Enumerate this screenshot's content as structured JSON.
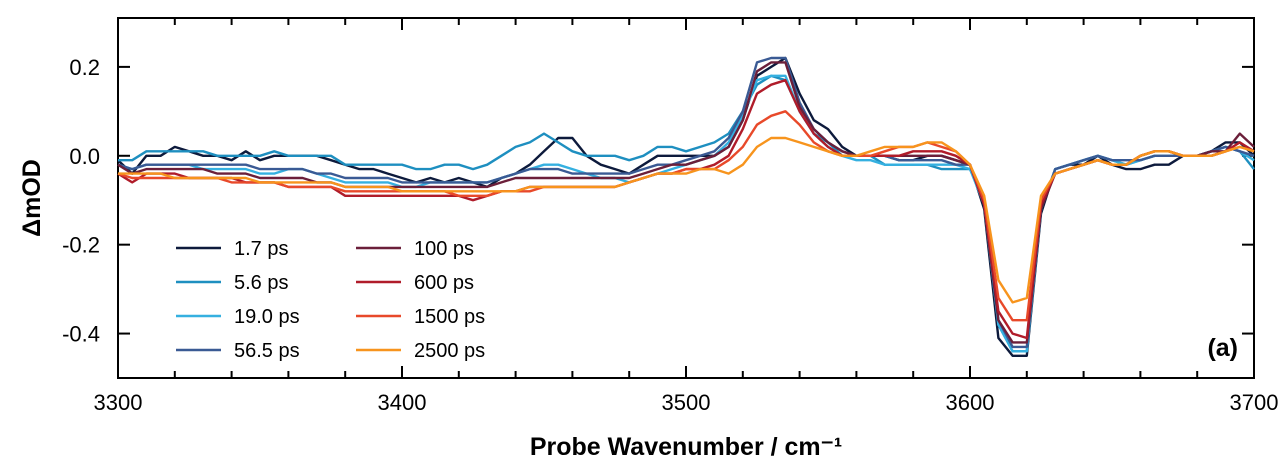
{
  "chart_data": {
    "type": "line",
    "xlabel": "Probe Wavenumber / cm⁻¹",
    "ylabel": "ΔmOD",
    "panel_label": "(a)",
    "xlim": [
      3300,
      3700
    ],
    "ylim": [
      -0.5,
      0.31
    ],
    "x_ticks": [
      3300,
      3400,
      3500,
      3600,
      3700
    ],
    "x_minor_step": 20,
    "y_ticks": [
      0.2,
      0.0,
      -0.2,
      -0.4
    ],
    "y_tick_labels": [
      "0.2",
      "0.0",
      "-0.2",
      "-0.4"
    ],
    "legend_position": "lower-left",
    "x": [
      3300,
      3305,
      3310,
      3315,
      3320,
      3325,
      3330,
      3335,
      3340,
      3345,
      3350,
      3355,
      3360,
      3365,
      3370,
      3375,
      3380,
      3385,
      3390,
      3395,
      3400,
      3405,
      3410,
      3415,
      3420,
      3425,
      3430,
      3435,
      3440,
      3445,
      3450,
      3455,
      3460,
      3465,
      3470,
      3475,
      3480,
      3485,
      3490,
      3495,
      3500,
      3505,
      3510,
      3515,
      3520,
      3525,
      3530,
      3535,
      3540,
      3545,
      3550,
      3555,
      3560,
      3565,
      3570,
      3575,
      3580,
      3585,
      3590,
      3595,
      3600,
      3605,
      3610,
      3615,
      3620,
      3625,
      3630,
      3635,
      3640,
      3645,
      3650,
      3655,
      3660,
      3665,
      3670,
      3675,
      3680,
      3685,
      3690,
      3695,
      3700
    ],
    "series": [
      {
        "name": "1.7 ps",
        "color": "#0d1a3c",
        "values": [
          -0.01,
          -0.04,
          0.0,
          0.0,
          0.02,
          0.01,
          0.0,
          0.0,
          -0.01,
          0.01,
          -0.01,
          0.0,
          0.0,
          0.0,
          0.0,
          -0.01,
          -0.02,
          -0.03,
          -0.03,
          -0.04,
          -0.05,
          -0.06,
          -0.05,
          -0.06,
          -0.05,
          -0.06,
          -0.07,
          -0.05,
          -0.04,
          -0.02,
          0.01,
          0.04,
          0.04,
          0.0,
          -0.02,
          -0.03,
          -0.04,
          -0.02,
          0.0,
          0.0,
          0.0,
          0.0,
          0.0,
          0.02,
          0.08,
          0.18,
          0.2,
          0.22,
          0.14,
          0.08,
          0.06,
          0.02,
          0.0,
          0.0,
          0.0,
          -0.01,
          -0.01,
          0.0,
          0.0,
          -0.01,
          -0.02,
          -0.12,
          -0.41,
          -0.45,
          -0.45,
          -0.13,
          -0.03,
          -0.02,
          -0.02,
          0.0,
          -0.02,
          -0.03,
          -0.03,
          -0.02,
          -0.02,
          0.0,
          0.0,
          0.01,
          0.03,
          0.03,
          0.0
        ]
      },
      {
        "name": "5.6 ps",
        "color": "#1e8fc0",
        "values": [
          -0.01,
          -0.01,
          0.01,
          0.01,
          0.01,
          0.01,
          0.01,
          0.0,
          0.0,
          0.0,
          0.0,
          0.01,
          0.0,
          0.0,
          0.0,
          0.0,
          -0.02,
          -0.02,
          -0.02,
          -0.02,
          -0.02,
          -0.03,
          -0.03,
          -0.02,
          -0.02,
          -0.03,
          -0.02,
          0.0,
          0.02,
          0.03,
          0.05,
          0.03,
          0.01,
          0.0,
          0.0,
          0.0,
          -0.01,
          0.0,
          0.02,
          0.02,
          0.01,
          0.02,
          0.03,
          0.05,
          0.1,
          0.16,
          0.18,
          0.17,
          0.1,
          0.05,
          0.03,
          0.0,
          0.0,
          0.0,
          -0.02,
          -0.02,
          -0.02,
          -0.02,
          -0.03,
          -0.03,
          -0.03,
          -0.1,
          -0.38,
          -0.44,
          -0.44,
          -0.12,
          -0.03,
          -0.02,
          -0.01,
          0.0,
          -0.01,
          -0.02,
          -0.01,
          0.0,
          0.0,
          0.0,
          0.0,
          0.01,
          0.02,
          0.01,
          -0.03
        ]
      },
      {
        "name": "19.0 ps",
        "color": "#35b0e0",
        "values": [
          -0.02,
          -0.03,
          -0.02,
          -0.02,
          -0.02,
          -0.02,
          -0.03,
          -0.03,
          -0.03,
          -0.03,
          -0.04,
          -0.04,
          -0.03,
          -0.03,
          -0.04,
          -0.05,
          -0.06,
          -0.06,
          -0.06,
          -0.06,
          -0.07,
          -0.07,
          -0.06,
          -0.06,
          -0.06,
          -0.06,
          -0.06,
          -0.05,
          -0.04,
          -0.03,
          -0.02,
          -0.02,
          -0.03,
          -0.04,
          -0.05,
          -0.05,
          -0.06,
          -0.05,
          -0.04,
          -0.03,
          -0.02,
          -0.01,
          0.0,
          0.03,
          0.09,
          0.17,
          0.18,
          0.18,
          0.1,
          0.05,
          0.02,
          0.0,
          -0.01,
          -0.01,
          -0.02,
          -0.02,
          -0.02,
          -0.02,
          -0.02,
          -0.02,
          -0.03,
          -0.11,
          -0.38,
          -0.44,
          -0.44,
          -0.12,
          -0.03,
          -0.02,
          -0.01,
          0.0,
          -0.01,
          -0.02,
          -0.01,
          0.0,
          0.0,
          0.0,
          0.0,
          0.01,
          0.02,
          0.01,
          -0.01
        ]
      },
      {
        "name": "56.5 ps",
        "color": "#3a5a94",
        "values": [
          -0.02,
          -0.03,
          -0.02,
          -0.02,
          -0.02,
          -0.02,
          -0.02,
          -0.02,
          -0.02,
          -0.02,
          -0.03,
          -0.03,
          -0.03,
          -0.03,
          -0.04,
          -0.04,
          -0.05,
          -0.05,
          -0.05,
          -0.05,
          -0.06,
          -0.06,
          -0.06,
          -0.06,
          -0.06,
          -0.06,
          -0.06,
          -0.05,
          -0.04,
          -0.03,
          -0.03,
          -0.03,
          -0.04,
          -0.04,
          -0.04,
          -0.04,
          -0.04,
          -0.03,
          -0.02,
          -0.02,
          -0.01,
          0.0,
          0.01,
          0.04,
          0.1,
          0.21,
          0.22,
          0.22,
          0.12,
          0.06,
          0.03,
          0.01,
          0.0,
          0.0,
          0.0,
          -0.01,
          -0.01,
          -0.01,
          -0.01,
          -0.02,
          -0.02,
          -0.11,
          -0.37,
          -0.43,
          -0.43,
          -0.12,
          -0.03,
          -0.02,
          -0.01,
          0.0,
          -0.01,
          -0.01,
          -0.01,
          0.0,
          0.0,
          0.0,
          0.0,
          0.01,
          0.02,
          0.01,
          0.0
        ]
      },
      {
        "name": "100 ps",
        "color": "#6b1f3a",
        "values": [
          -0.02,
          -0.04,
          -0.03,
          -0.03,
          -0.03,
          -0.03,
          -0.03,
          -0.04,
          -0.04,
          -0.04,
          -0.05,
          -0.05,
          -0.05,
          -0.05,
          -0.06,
          -0.06,
          -0.07,
          -0.07,
          -0.07,
          -0.07,
          -0.07,
          -0.07,
          -0.07,
          -0.07,
          -0.07,
          -0.07,
          -0.07,
          -0.06,
          -0.05,
          -0.05,
          -0.05,
          -0.05,
          -0.05,
          -0.05,
          -0.05,
          -0.05,
          -0.05,
          -0.04,
          -0.03,
          -0.02,
          -0.02,
          -0.01,
          0.0,
          0.02,
          0.08,
          0.19,
          0.21,
          0.21,
          0.11,
          0.06,
          0.03,
          0.01,
          0.0,
          0.0,
          0.0,
          0.0,
          0.0,
          0.0,
          0.0,
          -0.01,
          -0.02,
          -0.11,
          -0.37,
          -0.42,
          -0.42,
          -0.12,
          -0.04,
          -0.03,
          -0.02,
          -0.01,
          -0.02,
          -0.02,
          0.0,
          0.01,
          0.01,
          0.0,
          0.0,
          0.01,
          0.01,
          0.05,
          0.02
        ]
      },
      {
        "name": "600 ps",
        "color": "#b01c2a",
        "values": [
          -0.04,
          -0.06,
          -0.04,
          -0.04,
          -0.04,
          -0.05,
          -0.05,
          -0.05,
          -0.05,
          -0.06,
          -0.06,
          -0.06,
          -0.07,
          -0.07,
          -0.07,
          -0.07,
          -0.09,
          -0.09,
          -0.09,
          -0.09,
          -0.09,
          -0.09,
          -0.09,
          -0.09,
          -0.09,
          -0.1,
          -0.09,
          -0.08,
          -0.08,
          -0.07,
          -0.07,
          -0.07,
          -0.07,
          -0.07,
          -0.07,
          -0.07,
          -0.06,
          -0.05,
          -0.04,
          -0.04,
          -0.03,
          -0.03,
          -0.02,
          0.0,
          0.06,
          0.14,
          0.16,
          0.17,
          0.1,
          0.05,
          0.02,
          0.0,
          0.0,
          0.0,
          0.0,
          0.0,
          0.01,
          0.01,
          0.01,
          0.0,
          -0.02,
          -0.11,
          -0.35,
          -0.4,
          -0.41,
          -0.11,
          -0.04,
          -0.03,
          -0.02,
          -0.01,
          -0.02,
          -0.02,
          0.0,
          0.01,
          0.01,
          0.0,
          0.0,
          0.0,
          0.01,
          0.03,
          0.01
        ]
      },
      {
        "name": "1500 ps",
        "color": "#e8492a",
        "values": [
          -0.04,
          -0.05,
          -0.05,
          -0.05,
          -0.05,
          -0.05,
          -0.05,
          -0.05,
          -0.06,
          -0.06,
          -0.06,
          -0.06,
          -0.07,
          -0.07,
          -0.07,
          -0.07,
          -0.08,
          -0.08,
          -0.08,
          -0.08,
          -0.08,
          -0.08,
          -0.08,
          -0.08,
          -0.09,
          -0.09,
          -0.09,
          -0.08,
          -0.08,
          -0.08,
          -0.07,
          -0.07,
          -0.07,
          -0.07,
          -0.07,
          -0.07,
          -0.06,
          -0.05,
          -0.04,
          -0.04,
          -0.03,
          -0.03,
          -0.03,
          -0.01,
          0.02,
          0.07,
          0.09,
          0.1,
          0.07,
          0.03,
          0.01,
          0.0,
          0.0,
          0.0,
          0.01,
          0.02,
          0.02,
          0.03,
          0.02,
          0.01,
          -0.02,
          -0.1,
          -0.32,
          -0.37,
          -0.37,
          -0.1,
          -0.04,
          -0.03,
          -0.02,
          -0.01,
          -0.02,
          -0.02,
          0.0,
          0.01,
          0.01,
          0.0,
          0.0,
          0.0,
          0.01,
          0.02,
          0.01
        ]
      },
      {
        "name": "2500 ps",
        "color": "#f7941d",
        "values": [
          -0.04,
          -0.04,
          -0.04,
          -0.04,
          -0.05,
          -0.05,
          -0.05,
          -0.05,
          -0.05,
          -0.05,
          -0.06,
          -0.06,
          -0.06,
          -0.06,
          -0.06,
          -0.06,
          -0.07,
          -0.07,
          -0.07,
          -0.07,
          -0.08,
          -0.08,
          -0.08,
          -0.08,
          -0.08,
          -0.08,
          -0.08,
          -0.08,
          -0.08,
          -0.07,
          -0.07,
          -0.07,
          -0.07,
          -0.07,
          -0.07,
          -0.07,
          -0.06,
          -0.05,
          -0.04,
          -0.04,
          -0.04,
          -0.03,
          -0.03,
          -0.04,
          -0.02,
          0.02,
          0.04,
          0.04,
          0.03,
          0.02,
          0.01,
          0.0,
          0.0,
          0.01,
          0.02,
          0.02,
          0.02,
          0.03,
          0.03,
          0.01,
          -0.02,
          -0.09,
          -0.28,
          -0.33,
          -0.32,
          -0.09,
          -0.04,
          -0.03,
          -0.02,
          -0.01,
          -0.02,
          -0.02,
          0.0,
          0.01,
          0.01,
          0.0,
          0.0,
          0.0,
          0.01,
          0.02,
          0.01
        ]
      }
    ]
  }
}
